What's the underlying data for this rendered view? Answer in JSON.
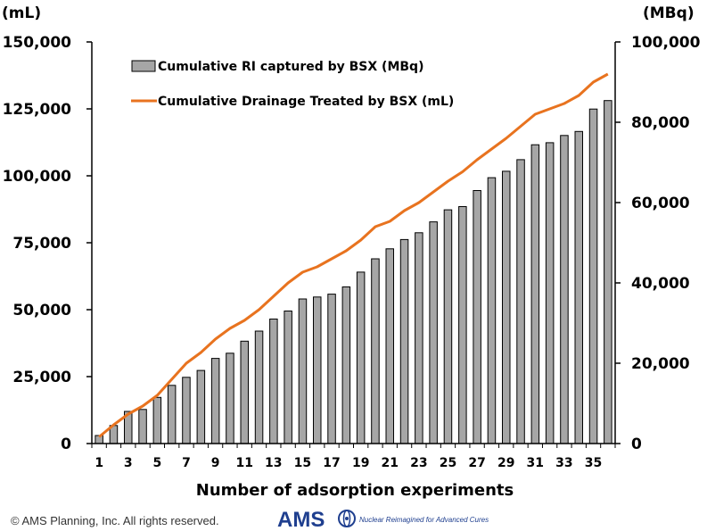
{
  "chart_data": {
    "type": "bar+line",
    "x": [
      1,
      2,
      3,
      4,
      5,
      6,
      7,
      8,
      9,
      10,
      11,
      12,
      13,
      14,
      15,
      16,
      17,
      18,
      19,
      20,
      21,
      22,
      23,
      24,
      25,
      26,
      27,
      28,
      29,
      30,
      31,
      32,
      33,
      34,
      35,
      36
    ],
    "xticks": [
      "1",
      "3",
      "5",
      "7",
      "9",
      "11",
      "13",
      "15",
      "17",
      "19",
      "21",
      "23",
      "25",
      "27",
      "29",
      "31",
      "33",
      "35"
    ],
    "xlabel": "Number of adsorption experiments",
    "y_left": {
      "unit": "(mL)",
      "range": [
        0,
        150000
      ],
      "ticks": [
        "0",
        "25,000",
        "50,000",
        "75,000",
        "100,000",
        "125,000",
        "150,000"
      ]
    },
    "y_right": {
      "unit": "(MBq)",
      "range": [
        0,
        100000
      ],
      "ticks": [
        "0",
        "20,000",
        "40,000",
        "60,000",
        "80,000",
        "100,000"
      ]
    },
    "legend_placement": "top-left",
    "series": [
      {
        "name": "Cumulative RI captured by BSX (MBq)",
        "type": "bar",
        "axis": "right",
        "color": "#a6a6a6",
        "values": [
          2000,
          4500,
          8000,
          8500,
          11500,
          14500,
          16500,
          18200,
          21200,
          22500,
          25500,
          28000,
          31000,
          33000,
          36000,
          36500,
          37200,
          39000,
          42700,
          46000,
          48500,
          50800,
          52500,
          55200,
          58200,
          59000,
          63000,
          66200,
          67800,
          70700,
          74400,
          74900,
          76700,
          77700,
          83300,
          85400
        ]
      },
      {
        "name": "Cumulative Drainage Treated by BSX (mL)",
        "type": "line",
        "axis": "left",
        "color": "#e8731f",
        "values": [
          2500,
          7000,
          11000,
          14000,
          18000,
          24000,
          30000,
          34000,
          39000,
          43000,
          46000,
          50000,
          55000,
          60000,
          64000,
          66000,
          69000,
          72000,
          76000,
          81000,
          83000,
          87000,
          90000,
          94000,
          98000,
          101500,
          106000,
          110000,
          114000,
          118500,
          123000,
          125000,
          127000,
          130000,
          135000,
          138000
        ]
      }
    ]
  },
  "footer": {
    "copyright": "© AMS Planning, Inc. All rights reserved.",
    "brand": "AMS",
    "tagline": "Nuclear Reimagined for Advanced Cures"
  },
  "colors": {
    "brand": "#1f3f8f",
    "bar_fill": "#a6a6a6",
    "line": "#e8731f"
  }
}
